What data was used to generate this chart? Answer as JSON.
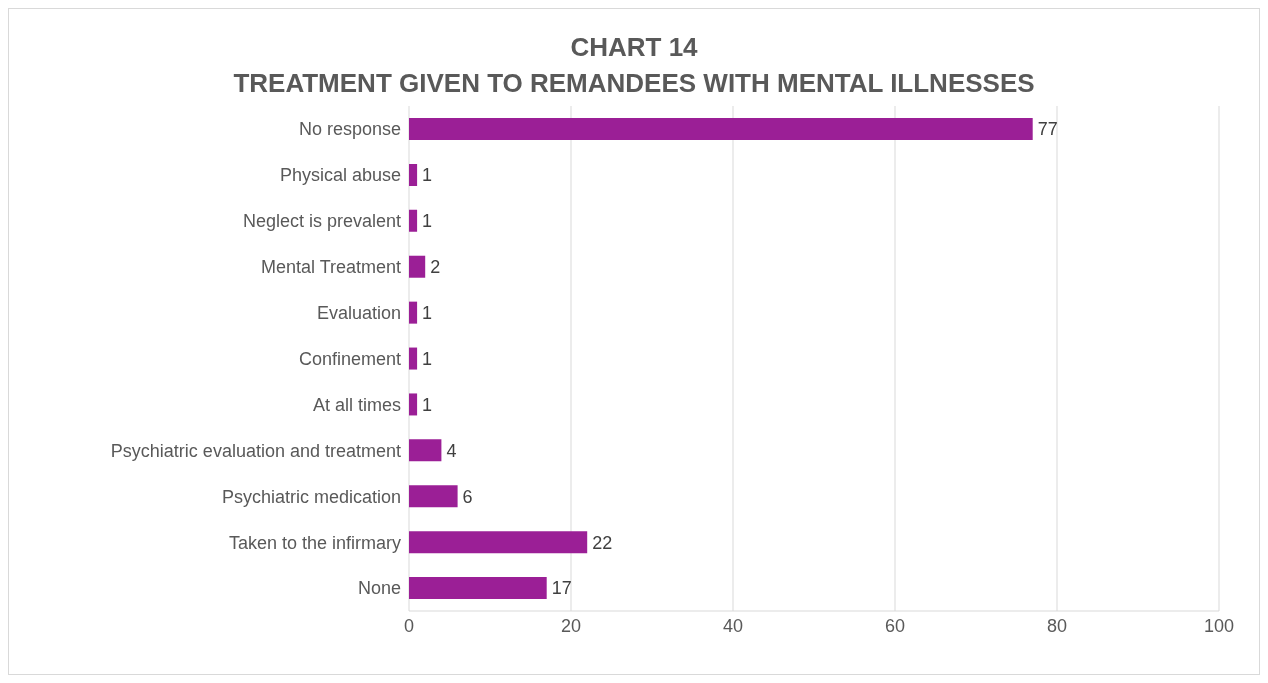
{
  "chart_data": {
    "type": "bar",
    "orientation": "horizontal",
    "title": "CHART 14",
    "subtitle": "TREATMENT GIVEN TO REMANDEES WITH MENTAL ILLNESSES",
    "categories": [
      "No response",
      "Physical abuse",
      "Neglect is prevalent",
      "Mental Treatment",
      "Evaluation",
      "Confinement",
      "At all times",
      "Psychiatric evaluation and treatment",
      "Psychiatric medication",
      "Taken to the infirmary",
      "None"
    ],
    "values": [
      77,
      1,
      1,
      2,
      1,
      1,
      1,
      4,
      6,
      22,
      17
    ],
    "color": "#9b1f96",
    "xlim": [
      0,
      100
    ],
    "xticks": [
      0,
      20,
      40,
      60,
      80,
      100
    ],
    "grid": "x",
    "data_labels": true
  }
}
